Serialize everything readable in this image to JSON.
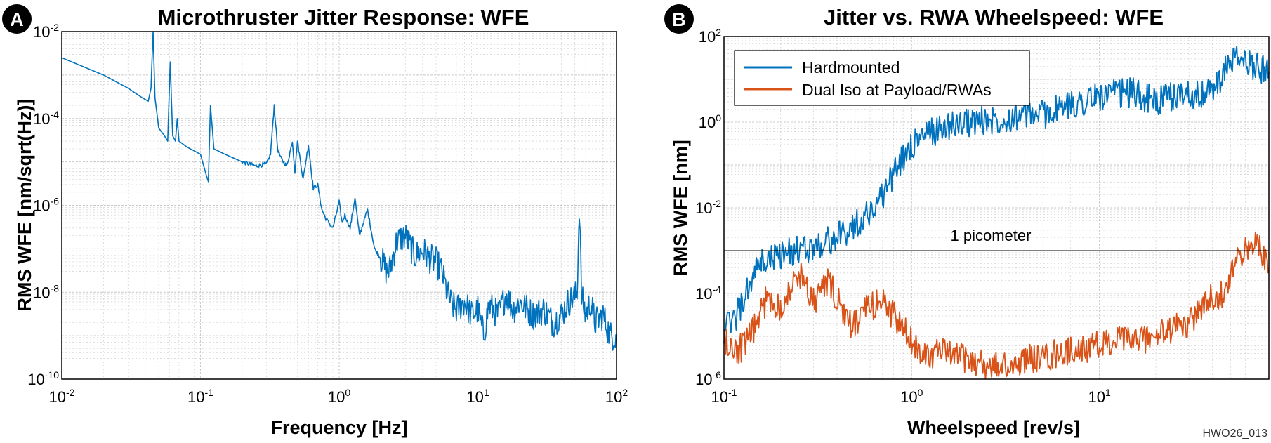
{
  "figure_code": "HWO26_013",
  "colors": {
    "blue": "#0072BD",
    "orange": "#D95319",
    "grid": "#c8c8c8",
    "axis": "#000000"
  },
  "chart_data": [
    {
      "panel": "A",
      "type": "line",
      "title": "Microthruster Jitter Response: WFE",
      "xlabel": "Frequency [Hz]",
      "ylabel": "RMS WFE [nm/sqrt(Hz)]",
      "xscale": "log",
      "yscale": "log",
      "xlim": [
        0.01,
        100
      ],
      "ylim": [
        1e-10,
        0.01
      ],
      "xticks": [
        {
          "base": "10",
          "exp": "-2",
          "v": 0.01
        },
        {
          "base": "10",
          "exp": "-1",
          "v": 0.1
        },
        {
          "base": "10",
          "exp": "0",
          "v": 1
        },
        {
          "base": "10",
          "exp": "1",
          "v": 10
        },
        {
          "base": "10",
          "exp": "2",
          "v": 100
        }
      ],
      "yticks": [
        {
          "base": "10",
          "exp": "-10",
          "v": 1e-10
        },
        {
          "base": "10",
          "exp": "-8",
          "v": 1e-08
        },
        {
          "base": "10",
          "exp": "-6",
          "v": 1e-06
        },
        {
          "base": "10",
          "exp": "-4",
          "v": 0.0001
        },
        {
          "base": "10",
          "exp": "-2",
          "v": 0.01
        }
      ],
      "grid": true,
      "series": [
        {
          "name": "Microthruster response",
          "color": "#0072BD",
          "x": [
            0.01,
            0.02,
            0.03,
            0.038,
            0.042,
            0.044,
            0.0455,
            0.047,
            0.05,
            0.055,
            0.058,
            0.0605,
            0.063,
            0.066,
            0.068,
            0.07,
            0.08,
            0.1,
            0.11,
            0.114,
            0.118,
            0.125,
            0.15,
            0.2,
            0.25,
            0.3,
            0.32,
            0.34,
            0.36,
            0.38,
            0.42,
            0.46,
            0.48,
            0.5,
            0.55,
            0.6,
            0.65,
            0.7,
            0.75,
            0.8,
            0.9,
            1.0,
            1.05,
            1.1,
            1.2,
            1.3,
            1.4,
            1.6,
            1.8,
            2.0,
            2.2,
            2.3,
            2.6,
            3.0,
            3.5,
            4.0,
            4.5,
            5.0,
            5.5,
            6.0,
            6.5,
            7.0,
            8.0,
            9.0,
            10.0,
            11.0,
            12.0,
            14.0,
            16.0,
            18.0,
            20.0,
            25.0,
            30.0,
            35.0,
            40.0,
            45.0,
            50.0,
            52.0,
            54.0,
            56.0,
            60.0,
            65.0,
            70.0,
            80.0,
            90.0,
            100.0
          ],
          "y": [
            0.0025,
            0.001,
            0.0005,
            0.0003,
            0.00025,
            0.0005,
            0.01,
            0.0003,
            6e-05,
            4e-05,
            3e-05,
            0.002,
            4e-05,
            3e-05,
            0.0001,
            3e-05,
            2.2e-05,
            1.5e-05,
            5e-06,
            3.5e-06,
            0.0002,
            2e-05,
            1.5e-05,
            1e-05,
            8e-06,
            9e-06,
            1.5e-05,
            0.0002,
            2e-05,
            1.2e-05,
            8e-06,
            3e-05,
            6e-06,
            3e-05,
            4e-06,
            2.5e-05,
            2.5e-06,
            3e-06,
            8e-07,
            5e-07,
            3e-07,
            1.2e-06,
            4e-07,
            6e-07,
            3e-07,
            1.5e-06,
            2e-07,
            8e-07,
            1e-07,
            6e-08,
            3e-08,
            3e-08,
            1.5e-07,
            2e-07,
            7e-08,
            9e-08,
            6e-08,
            5e-08,
            3e-08,
            1e-08,
            5e-09,
            4e-09,
            6e-09,
            3e-09,
            4e-09,
            1e-09,
            5e-09,
            3e-09,
            9e-09,
            4e-09,
            6e-09,
            3e-09,
            4e-09,
            2e-09,
            3e-09,
            6e-09,
            8e-09,
            1e-08,
            1e-06,
            8e-09,
            3e-09,
            6e-09,
            2e-09,
            3e-09,
            1e-09,
            1e-09
          ]
        }
      ]
    },
    {
      "panel": "B",
      "type": "line",
      "title": "Jitter vs. RWA Wheelspeed: WFE",
      "xlabel": "Wheelspeed [rev/s]",
      "ylabel": "RMS WFE [nm]",
      "xscale": "log",
      "yscale": "log",
      "xlim": [
        0.1,
        80
      ],
      "ylim": [
        1e-06,
        100
      ],
      "xticks": [
        {
          "base": "10",
          "exp": "-1",
          "v": 0.1
        },
        {
          "base": "10",
          "exp": "0",
          "v": 1
        },
        {
          "base": "10",
          "exp": "1",
          "v": 10
        }
      ],
      "yticks": [
        {
          "base": "10",
          "exp": "-6",
          "v": 1e-06
        },
        {
          "base": "10",
          "exp": "-4",
          "v": 0.0001
        },
        {
          "base": "10",
          "exp": "-2",
          "v": 0.01
        },
        {
          "base": "10",
          "exp": "0",
          "v": 1
        },
        {
          "base": "10",
          "exp": "2",
          "v": 100
        }
      ],
      "grid": true,
      "legend": "top-left",
      "reference_line": {
        "y": 0.001,
        "label": "1 picometer",
        "color": "#000000"
      },
      "series": [
        {
          "name": "Hardmounted",
          "color": "#0072BD",
          "x": [
            0.1,
            0.11,
            0.12,
            0.13,
            0.14,
            0.15,
            0.17,
            0.2,
            0.25,
            0.3,
            0.35,
            0.4,
            0.5,
            0.6,
            0.7,
            0.8,
            0.9,
            1.0,
            1.2,
            1.5,
            2.0,
            3.0,
            4.0,
            5.0,
            6.0,
            8.0,
            10.0,
            15.0,
            20.0,
            25.0,
            30.0,
            35.0,
            40.0,
            45.0,
            50.0,
            60.0,
            70.0,
            80.0
          ],
          "y": [
            1.5e-05,
            2e-05,
            4e-05,
            8e-05,
            0.0002,
            0.0004,
            0.0006,
            0.0008,
            0.001,
            0.0012,
            0.0016,
            0.002,
            0.004,
            0.008,
            0.02,
            0.06,
            0.15,
            0.3,
            0.5,
            0.8,
            1.0,
            1.2,
            1.5,
            1.5,
            2.0,
            3.0,
            4.0,
            5.0,
            3.0,
            4.0,
            5.0,
            4.0,
            6.0,
            10.0,
            30.0,
            25.0,
            20.0,
            15.0
          ]
        },
        {
          "name": "Dual Iso at Payload/RWAs",
          "color": "#D95319",
          "x": [
            0.1,
            0.11,
            0.12,
            0.13,
            0.15,
            0.17,
            0.2,
            0.23,
            0.26,
            0.3,
            0.35,
            0.4,
            0.45,
            0.5,
            0.6,
            0.7,
            0.8,
            0.9,
            1.0,
            1.1,
            1.2,
            1.5,
            2.0,
            2.5,
            3.0,
            3.5,
            4.0,
            5.0,
            6.0,
            8.0,
            10.0,
            12.0,
            15.0,
            20.0,
            25.0,
            30.0,
            35.0,
            40.0,
            45.0,
            50.0,
            55.0,
            60.0,
            65.0,
            70.0,
            80.0
          ],
          "y": [
            1e-05,
            5e-06,
            5e-06,
            6e-06,
            2e-05,
            8e-05,
            5e-05,
            0.00015,
            0.0003,
            6e-05,
            0.0002,
            8e-05,
            2e-05,
            2e-05,
            5e-05,
            7e-05,
            3e-05,
            1.5e-05,
            7e-06,
            5e-06,
            4e-06,
            4e-06,
            3e-06,
            2e-06,
            2e-06,
            2e-06,
            3e-06,
            3e-06,
            4e-06,
            5e-06,
            6e-06,
            8e-06,
            8e-06,
            1e-05,
            1.5e-05,
            2e-05,
            5e-05,
            8e-05,
            0.0001,
            0.0003,
            0.0006,
            0.001,
            0.001,
            0.002,
            0.0003
          ]
        }
      ]
    }
  ]
}
